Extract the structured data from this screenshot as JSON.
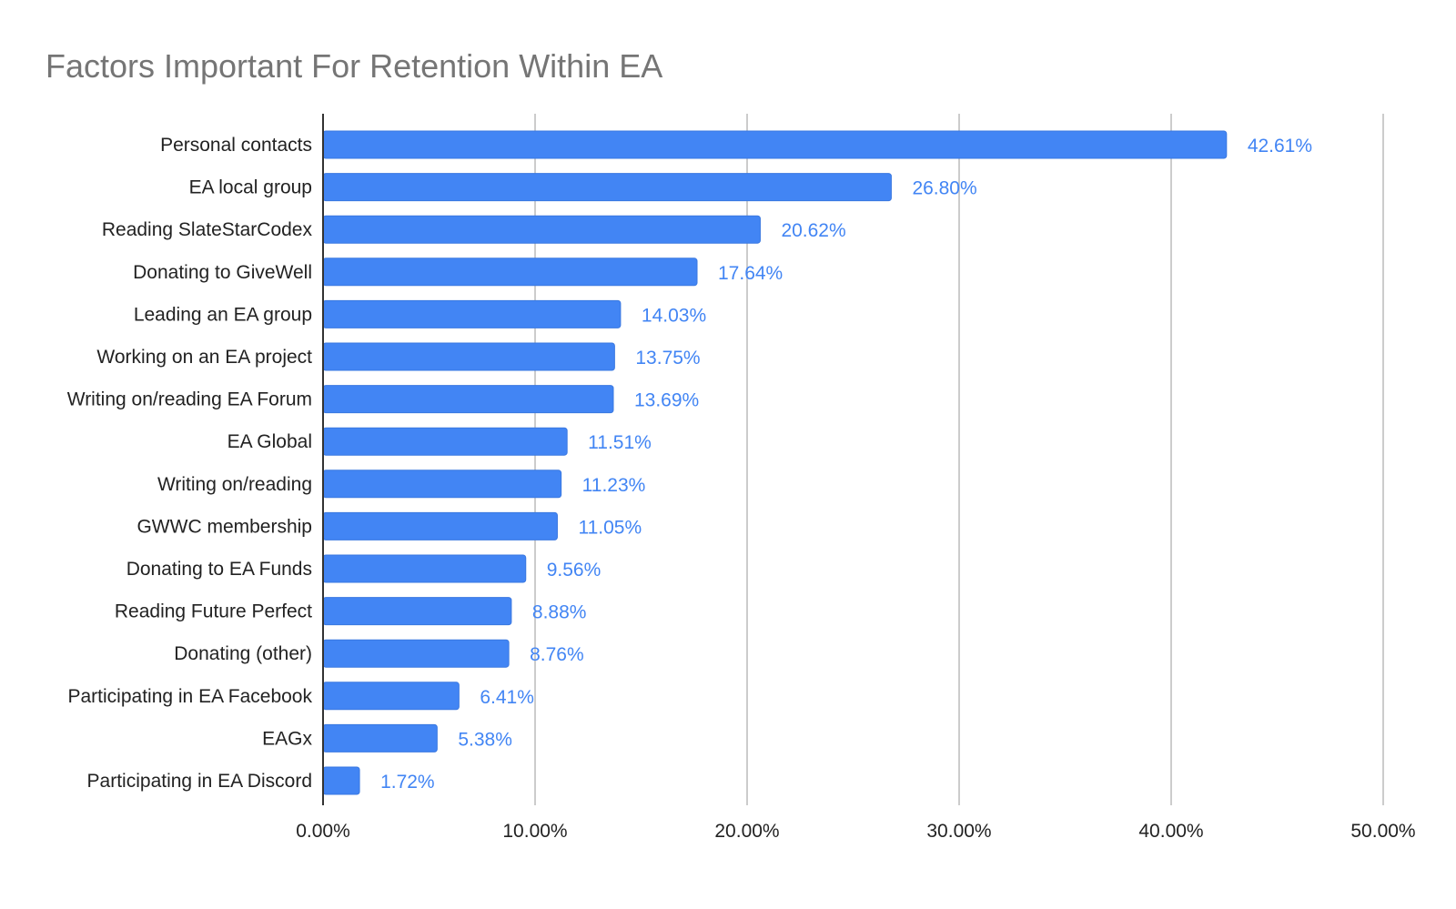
{
  "chart_data": {
    "type": "bar",
    "orientation": "horizontal",
    "title": "Factors Important For Retention Within EA",
    "xlabel": "",
    "ylabel": "",
    "categories": [
      "Personal contacts",
      "EA local group",
      "Reading SlateStarCodex",
      "Donating to GiveWell",
      "Leading an EA group",
      "Working on an EA project",
      "Writing on/reading EA Forum",
      "EA Global",
      "Writing on/reading",
      "GWWC membership",
      "Donating to EA Funds",
      "Reading Future Perfect",
      "Donating (other)",
      "Participating in EA Facebook",
      "EAGx",
      "Participating in EA Discord"
    ],
    "values": [
      42.61,
      26.8,
      20.62,
      17.64,
      14.03,
      13.75,
      13.69,
      11.51,
      11.23,
      11.05,
      9.56,
      8.88,
      8.76,
      6.41,
      5.38,
      1.72
    ],
    "data_labels": [
      "42.61%",
      "26.80%",
      "20.62%",
      "17.64%",
      "14.03%",
      "13.75%",
      "13.69%",
      "11.51%",
      "11.23%",
      "11.05%",
      "9.56%",
      "8.88%",
      "8.76%",
      "6.41%",
      "5.38%",
      "1.72%"
    ],
    "xlim": [
      0,
      50
    ],
    "x_ticks": [
      0,
      10,
      20,
      30,
      40,
      50
    ],
    "x_tick_labels": [
      "0.00%",
      "10.00%",
      "20.00%",
      "30.00%",
      "40.00%",
      "50.00%"
    ],
    "grid": true,
    "legend": "none",
    "colors": {
      "bar": "#4285f4",
      "bar_stroke": "#3a78e0",
      "data_label": "#4285f4",
      "title": "#757575",
      "text": "#222222",
      "grid": "#cccccc",
      "axis": "#333333"
    }
  }
}
